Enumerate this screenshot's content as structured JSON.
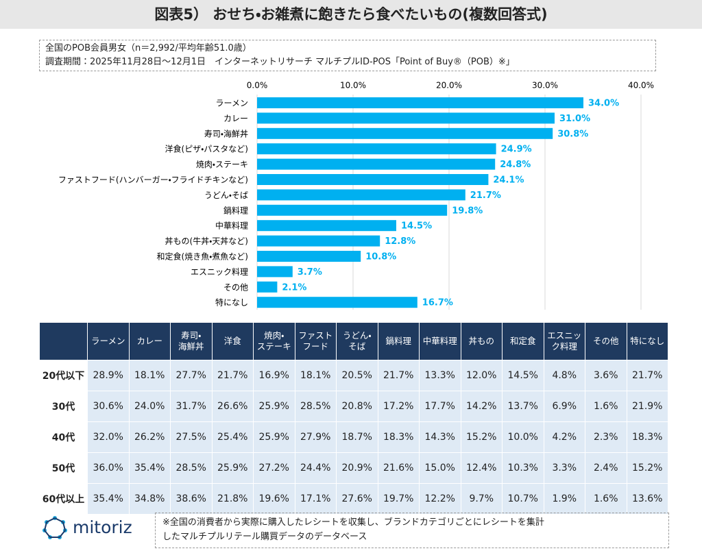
{
  "title": "図表5） おせち・お雑煮に飽きたら食べたいもの(複数回答式)",
  "notes": [
    "全国のPOB会員男女（n＝2,992/平均年齢51.0歳）",
    "調査期間：2025年11月28日～12月1日　インターネットリサーチ マルチプルID-POS「Point of Buy®（POB）※」"
  ],
  "chart_data": {
    "type": "hbar",
    "categories": [
      "ラーメン",
      "カレー",
      "寿司・海鮮丼",
      "洋食(ピザ・パスタなど)",
      "焼肉・ステーキ",
      "ファストフード(ハンバーガー・フライドチキンなど)",
      "うどん・そば",
      "鍋料理",
      "中華料理",
      "丼もの(牛丼・天丼など)",
      "和定食(焼き魚・煮魚など)",
      "エスニック料理",
      "その他",
      "特になし"
    ],
    "values": [
      34.0,
      31.0,
      30.8,
      24.9,
      24.8,
      24.1,
      21.7,
      19.8,
      14.5,
      12.8,
      10.8,
      3.7,
      2.1,
      16.7
    ],
    "value_labels": [
      "34.0%",
      "31.0%",
      "30.8%",
      "24.9%",
      "24.8%",
      "24.1%",
      "21.7%",
      "19.8%",
      "14.5%",
      "12.8%",
      "10.8%",
      "3.7%",
      "2.1%",
      "16.7%"
    ],
    "color": "#00b0f0",
    "xlim": [
      0,
      40
    ],
    "xticks": [
      {
        "value": 0,
        "label": "0.0%"
      },
      {
        "value": 10,
        "label": "10.0%"
      },
      {
        "value": 20,
        "label": "20.0%"
      },
      {
        "value": 30,
        "label": "30.0%"
      },
      {
        "value": 40,
        "label": "40.0%"
      }
    ],
    "grid": true
  },
  "table": {
    "columns": [
      "ラーメン",
      "カレー",
      "寿司・\n海鮮丼",
      "洋食",
      "焼肉・\nステーキ",
      "ファスト\nフード",
      "うどん・\nそば",
      "鍋料理",
      "中華料理",
      "丼もの",
      "和定食",
      "エスニッ\nク料理",
      "その他",
      "特になし"
    ],
    "rows": [
      {
        "label": "20代以下",
        "cells": [
          "28.9%",
          "18.1%",
          "27.7%",
          "21.7%",
          "16.9%",
          "18.1%",
          "20.5%",
          "21.7%",
          "13.3%",
          "12.0%",
          "14.5%",
          "4.8%",
          "3.6%",
          "21.7%"
        ]
      },
      {
        "label": "30代",
        "cells": [
          "30.6%",
          "24.0%",
          "31.7%",
          "26.6%",
          "25.9%",
          "28.5%",
          "20.8%",
          "17.2%",
          "17.7%",
          "14.2%",
          "13.7%",
          "6.9%",
          "1.6%",
          "21.9%"
        ]
      },
      {
        "label": "40代",
        "cells": [
          "32.0%",
          "26.2%",
          "27.5%",
          "25.4%",
          "25.9%",
          "27.9%",
          "18.7%",
          "18.3%",
          "14.3%",
          "15.2%",
          "10.0%",
          "4.2%",
          "2.3%",
          "18.3%"
        ]
      },
      {
        "label": "50代",
        "cells": [
          "36.0%",
          "35.4%",
          "28.5%",
          "25.9%",
          "27.2%",
          "24.4%",
          "20.9%",
          "21.6%",
          "15.0%",
          "12.4%",
          "10.3%",
          "3.3%",
          "2.4%",
          "15.2%"
        ]
      },
      {
        "label": "60代以上",
        "cells": [
          "35.4%",
          "34.8%",
          "38.6%",
          "21.8%",
          "19.6%",
          "17.1%",
          "27.6%",
          "19.7%",
          "12.2%",
          "9.7%",
          "10.7%",
          "1.9%",
          "1.6%",
          "13.6%"
        ]
      }
    ]
  },
  "logo": "mitoriz",
  "footnote": [
    "※全国の消費者から実際に購入したレシートを収集し、ブランドカテゴリごとにレシートを集計",
    "したマルチプルリテール購買データのデータベース"
  ]
}
